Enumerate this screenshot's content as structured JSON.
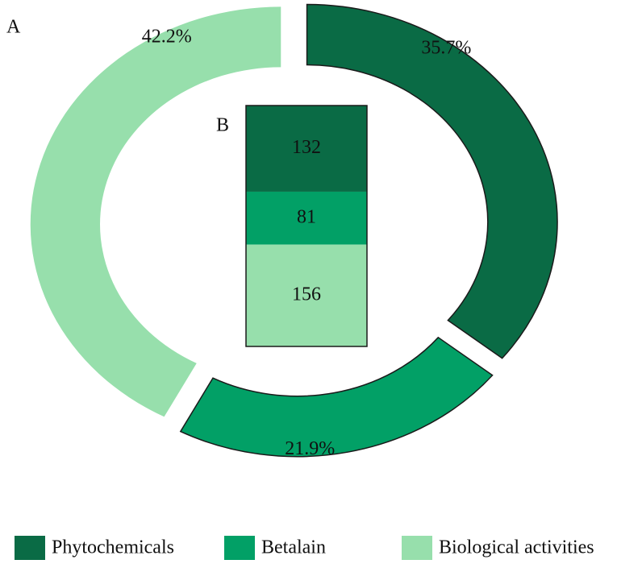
{
  "chart_data": [
    {
      "type": "pie",
      "label": "A",
      "categories": [
        "Phytochemicals",
        "Betalain",
        "Biological activities"
      ],
      "values": [
        35.7,
        21.9,
        42.2
      ],
      "value_labels": [
        "35.7%",
        "21.9%",
        "42.2%"
      ],
      "colors": [
        "#0a6b45",
        "#02a066",
        "#97dfac"
      ],
      "donut": true,
      "exploded": true
    },
    {
      "type": "stacked-bar",
      "label": "B",
      "values": [
        132,
        81,
        156
      ],
      "colors": [
        "#0a6b45",
        "#02a066",
        "#97dfac"
      ]
    }
  ]
}
